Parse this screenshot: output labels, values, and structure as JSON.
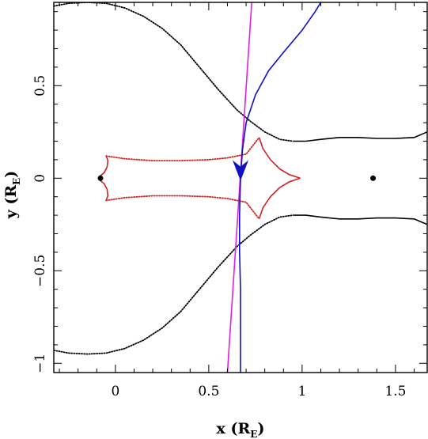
{
  "chart_data": {
    "type": "line",
    "title": "",
    "xlabel": "x (R",
    "xlabel_sub": "E",
    "xlabel_close": ")",
    "ylabel": "y (R",
    "ylabel_sub": "E",
    "ylabel_close": ")",
    "xlim": [
      -0.33,
      1.67
    ],
    "ylim": [
      -1.05,
      0.95
    ],
    "x_ticks": [
      0,
      0.5,
      1,
      1.5
    ],
    "x_tick_labels": [
      "0",
      "0.5",
      "1",
      "1.5"
    ],
    "y_ticks": [
      -1,
      -0.5,
      0,
      0.5
    ],
    "y_tick_labels": [
      "−1",
      "−0.5",
      "0",
      "0.5"
    ],
    "grid": false,
    "legend": "none",
    "lenses": [
      {
        "x": -0.08,
        "y": 0
      },
      {
        "x": 1.38,
        "y": 0
      }
    ],
    "series": [
      {
        "style": "dotted",
        "color": "#000000",
        "mirror_y": true,
        "points": [
          [
            -0.33,
            0.93
          ],
          [
            -0.25,
            0.945
          ],
          [
            -0.15,
            0.95
          ],
          [
            -0.05,
            0.945
          ],
          [
            0.05,
            0.92
          ],
          [
            0.15,
            0.875
          ],
          [
            0.25,
            0.81
          ],
          [
            0.35,
            0.72
          ],
          [
            0.45,
            0.6
          ],
          [
            0.55,
            0.48
          ],
          [
            0.65,
            0.37
          ],
          [
            0.72,
            0.31
          ],
          [
            0.8,
            0.25
          ],
          [
            0.88,
            0.21
          ],
          [
            0.95,
            0.2
          ]
        ]
      },
      {
        "style": "solid",
        "color": "#000000",
        "mirror_y": true,
        "points": [
          [
            0.95,
            0.2
          ],
          [
            1.02,
            0.2
          ],
          [
            1.1,
            0.21
          ],
          [
            1.2,
            0.22
          ],
          [
            1.3,
            0.22
          ],
          [
            1.4,
            0.215
          ],
          [
            1.5,
            0.215
          ],
          [
            1.6,
            0.22
          ],
          [
            1.67,
            0.25
          ]
        ]
      },
      {
        "style": "dotted",
        "color": "#d42020",
        "mirror_y": true,
        "points": [
          [
            -0.05,
            0.12
          ],
          [
            0.05,
            0.105
          ],
          [
            0.2,
            0.095
          ],
          [
            0.35,
            0.095
          ],
          [
            0.5,
            0.1
          ],
          [
            0.6,
            0.11
          ],
          [
            0.7,
            0.13
          ],
          [
            0.77,
            0.22
          ]
        ]
      },
      {
        "style": "solid",
        "color": "#d42020",
        "mirror_y": true,
        "points": [
          [
            -0.05,
            0.12
          ],
          [
            -0.04,
            0.095
          ],
          [
            -0.045,
            0.06
          ],
          [
            -0.06,
            0.03
          ],
          [
            -0.085,
            0.01
          ],
          [
            -0.085,
            0
          ]
        ]
      },
      {
        "style": "solid",
        "color": "#d42020",
        "mirror_y": true,
        "points": [
          [
            0.77,
            0.22
          ],
          [
            0.79,
            0.16
          ],
          [
            0.83,
            0.1
          ],
          [
            0.88,
            0.05
          ],
          [
            0.93,
            0.02
          ],
          [
            0.99,
            0
          ]
        ]
      },
      {
        "style": "solid",
        "color": "#e020e0",
        "mirror_y": false,
        "points": [
          [
            0.6,
            -1.05
          ],
          [
            0.73,
            0.95
          ]
        ]
      },
      {
        "style": "solid",
        "color": "#1010c8",
        "mirror_y": false,
        "points": [
          [
            0.67,
            -1.05
          ],
          [
            0.67,
            -0.8
          ],
          [
            0.67,
            -0.6
          ],
          [
            0.665,
            -0.4
          ],
          [
            0.665,
            -0.2
          ],
          [
            0.67,
            0
          ],
          [
            0.68,
            0.15
          ],
          [
            0.7,
            0.3
          ],
          [
            0.75,
            0.45
          ],
          [
            0.82,
            0.58
          ],
          [
            0.9,
            0.68
          ],
          [
            1.0,
            0.8
          ],
          [
            1.07,
            0.9
          ],
          [
            1.1,
            0.95
          ]
        ]
      }
    ],
    "arrow": {
      "x": 0.67,
      "y": 0.02,
      "direction": "down",
      "color": "#1010c8"
    }
  }
}
